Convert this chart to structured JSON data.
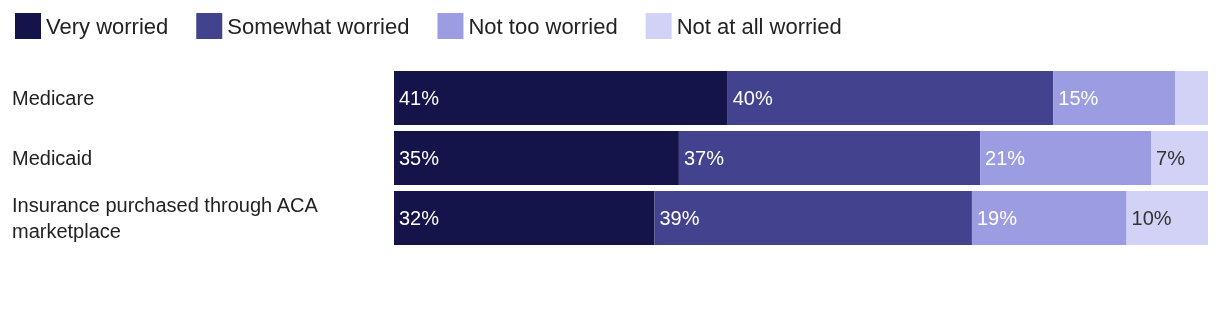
{
  "chart_data": {
    "type": "bar",
    "orientation": "horizontal",
    "stacked": true,
    "legend": "top left",
    "categories": [
      "Medicare",
      "Medicaid",
      "Insurance purchased through ACA marketplace"
    ],
    "series": [
      {
        "name": "Very worried",
        "color": "#14134a",
        "values": [
          41,
          35,
          32
        ],
        "value_labels": [
          "41%",
          "35%",
          "32%"
        ]
      },
      {
        "name": "Somewhat worried",
        "color": "#42428f",
        "values": [
          40,
          37,
          39
        ],
        "value_labels": [
          "40%",
          "37%",
          "39%"
        ]
      },
      {
        "name": "Not too worried",
        "color": "#9c9ce2",
        "values": [
          15,
          21,
          19
        ],
        "value_labels": [
          "15%",
          "21%",
          "19%"
        ]
      },
      {
        "name": "Not at all worried",
        "color": "#d2d2f7",
        "values": [
          4,
          7,
          10
        ],
        "value_labels": [
          null,
          "7%",
          "10%"
        ]
      }
    ]
  }
}
